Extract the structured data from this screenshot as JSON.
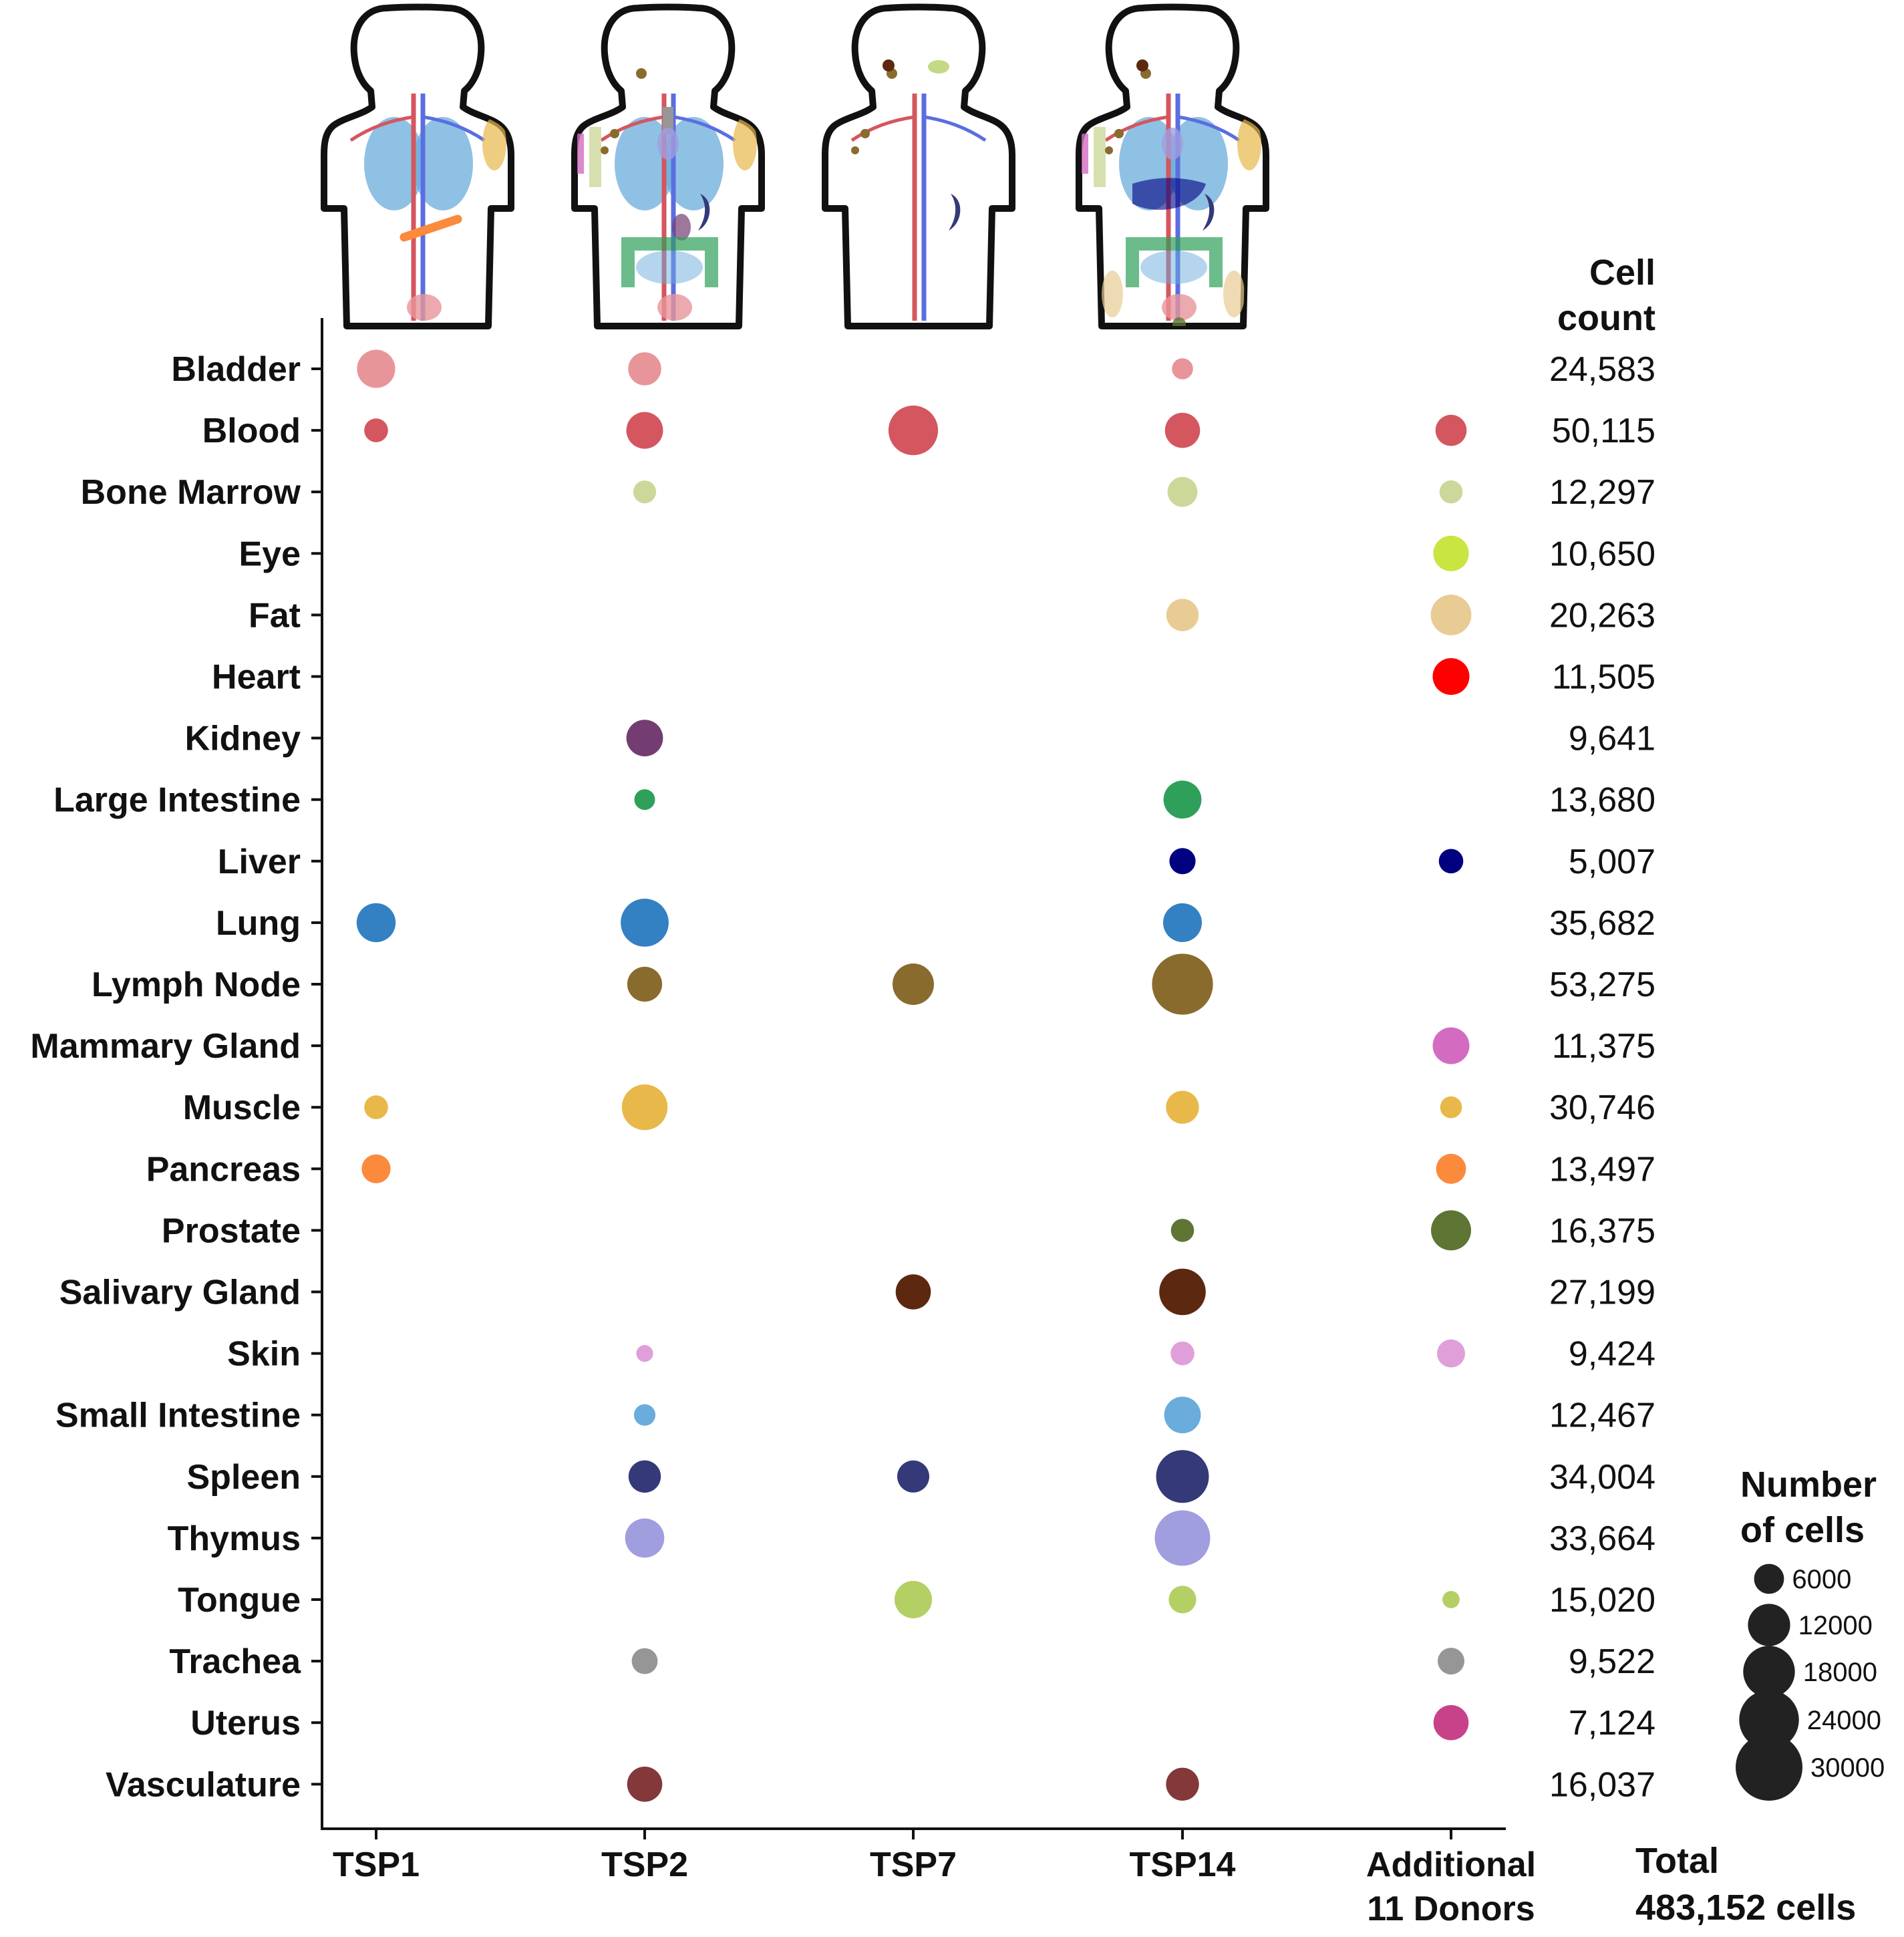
{
  "header": {
    "cell_count_line1": "Cell",
    "cell_count_line2": "count",
    "legend_title_line1": "Number",
    "legend_title_line2": "of cells",
    "total_line1": "Total",
    "total_line2": "483,152 cells"
  },
  "legend": {
    "sizes": [
      6000,
      12000,
      18000,
      24000,
      30000
    ],
    "labels": [
      "6000",
      "12000",
      "18000",
      "24000",
      "30000"
    ]
  },
  "chart_data": {
    "type": "scatter",
    "subtype": "dot-matrix",
    "x_categories": [
      "TSP1",
      "TSP2",
      "TSP7",
      "TSP14",
      "Additional\n11 Donors"
    ],
    "y_categories": [
      "Bladder",
      "Blood",
      "Bone Marrow",
      "Eye",
      "Fat",
      "Heart",
      "Kidney",
      "Large Intestine",
      "Liver",
      "Lung",
      "Lymph Node",
      "Mammary Gland",
      "Muscle",
      "Pancreas",
      "Prostate",
      "Salivary Gland",
      "Skin",
      "Small Intestine",
      "Spleen",
      "Thymus",
      "Tongue",
      "Trachea",
      "Uterus",
      "Vasculature"
    ],
    "cell_counts": [
      "24,583",
      "50,115",
      "12,297",
      "10,650",
      "20,263",
      "11,505",
      "9,641",
      "13,680",
      "5,007",
      "35,682",
      "53,275",
      "11,375",
      "30,746",
      "13,497",
      "16,375",
      "27,199",
      "9,424",
      "12,467",
      "34,004",
      "33,664",
      "15,020",
      "9,522",
      "7,124",
      "16,037"
    ],
    "colors": {
      "Bladder": "#e8959a",
      "Blood": "#d4565f",
      "Bone Marrow": "#ccd89a",
      "Eye": "#c9e542",
      "Fat": "#e8cc93",
      "Heart": "#ff0000",
      "Kidney": "#733d72",
      "Large Intestine": "#2ea05a",
      "Liver": "#000080",
      "Lung": "#3381c2",
      "Lymph Node": "#8a6b2e",
      "Mammary Gland": "#d36cc0",
      "Muscle": "#e8b84a",
      "Pancreas": "#fb8a3c",
      "Prostate": "#5e7534",
      "Salivary Gland": "#5c2810",
      "Skin": "#dfa0da",
      "Small Intestine": "#6aacdb",
      "Spleen": "#343a78",
      "Thymus": "#a09ede",
      "Tongue": "#b4cf64",
      "Trachea": "#969696",
      "Uterus": "#c8428a",
      "Vasculature": "#83383a"
    },
    "points": [
      {
        "donor": "TSP1",
        "tissue": "Bladder",
        "cells": 9800
      },
      {
        "donor": "TSP1",
        "tissue": "Blood",
        "cells": 3800
      },
      {
        "donor": "TSP1",
        "tissue": "Lung",
        "cells": 10200
      },
      {
        "donor": "TSP1",
        "tissue": "Muscle",
        "cells": 3800
      },
      {
        "donor": "TSP1",
        "tissue": "Pancreas",
        "cells": 5600
      },
      {
        "donor": "TSP2",
        "tissue": "Bladder",
        "cells": 7300
      },
      {
        "donor": "TSP2",
        "tissue": "Blood",
        "cells": 9100
      },
      {
        "donor": "TSP2",
        "tissue": "Bone Marrow",
        "cells": 3500
      },
      {
        "donor": "TSP2",
        "tissue": "Kidney",
        "cells": 9000
      },
      {
        "donor": "TSP2",
        "tissue": "Large Intestine",
        "cells": 2900
      },
      {
        "donor": "TSP2",
        "tissue": "Lung",
        "cells": 15500
      },
      {
        "donor": "TSP2",
        "tissue": "Lymph Node",
        "cells": 8200
      },
      {
        "donor": "TSP2",
        "tissue": "Muscle",
        "cells": 14000
      },
      {
        "donor": "TSP2",
        "tissue": "Skin",
        "cells": 1900
      },
      {
        "donor": "TSP2",
        "tissue": "Small Intestine",
        "cells": 3100
      },
      {
        "donor": "TSP2",
        "tissue": "Spleen",
        "cells": 7000
      },
      {
        "donor": "TSP2",
        "tissue": "Thymus",
        "cells": 10300
      },
      {
        "donor": "TSP2",
        "tissue": "Trachea",
        "cells": 4500
      },
      {
        "donor": "TSP2",
        "tissue": "Vasculature",
        "cells": 8300
      },
      {
        "donor": "TSP7",
        "tissue": "Blood",
        "cells": 16500
      },
      {
        "donor": "TSP7",
        "tissue": "Lymph Node",
        "cells": 11500
      },
      {
        "donor": "TSP7",
        "tissue": "Salivary Gland",
        "cells": 8300
      },
      {
        "donor": "TSP7",
        "tissue": "Spleen",
        "cells": 6900
      },
      {
        "donor": "TSP7",
        "tissue": "Tongue",
        "cells": 9400
      },
      {
        "donor": "TSP14",
        "tissue": "Bladder",
        "cells": 3000
      },
      {
        "donor": "TSP14",
        "tissue": "Blood",
        "cells": 8300
      },
      {
        "donor": "TSP14",
        "tissue": "Bone Marrow",
        "cells": 6000
      },
      {
        "donor": "TSP14",
        "tissue": "Fat",
        "cells": 7000
      },
      {
        "donor": "TSP14",
        "tissue": "Large Intestine",
        "cells": 9700
      },
      {
        "donor": "TSP14",
        "tissue": "Liver",
        "cells": 4600
      },
      {
        "donor": "TSP14",
        "tissue": "Lung",
        "cells": 10100
      },
      {
        "donor": "TSP14",
        "tissue": "Lymph Node",
        "cells": 25000
      },
      {
        "donor": "TSP14",
        "tissue": "Muscle",
        "cells": 7300
      },
      {
        "donor": "TSP14",
        "tissue": "Prostate",
        "cells": 3600
      },
      {
        "donor": "TSP14",
        "tissue": "Salivary Gland",
        "cells": 14500
      },
      {
        "donor": "TSP14",
        "tissue": "Skin",
        "cells": 3800
      },
      {
        "donor": "TSP14",
        "tissue": "Small Intestine",
        "cells": 9000
      },
      {
        "donor": "TSP14",
        "tissue": "Spleen",
        "cells": 18700
      },
      {
        "donor": "TSP14",
        "tissue": "Thymus",
        "cells": 20700
      },
      {
        "donor": "TSP14",
        "tissue": "Tongue",
        "cells": 5100
      },
      {
        "donor": "TSP14",
        "tissue": "Vasculature",
        "cells": 7300
      },
      {
        "donor": "Additional\n11 Donors",
        "tissue": "Blood",
        "cells": 6500
      },
      {
        "donor": "Additional\n11 Donors",
        "tissue": "Bone Marrow",
        "cells": 3600
      },
      {
        "donor": "Additional\n11 Donors",
        "tissue": "Eye",
        "cells": 8500
      },
      {
        "donor": "Additional\n11 Donors",
        "tissue": "Fat",
        "cells": 11100
      },
      {
        "donor": "Additional\n11 Donors",
        "tissue": "Heart",
        "cells": 9100
      },
      {
        "donor": "Additional\n11 Donors",
        "tissue": "Liver",
        "cells": 4000
      },
      {
        "donor": "Additional\n11 Donors",
        "tissue": "Mammary Gland",
        "cells": 9100
      },
      {
        "donor": "Additional\n11 Donors",
        "tissue": "Muscle",
        "cells": 3200
      },
      {
        "donor": "Additional\n11 Donors",
        "tissue": "Pancreas",
        "cells": 6000
      },
      {
        "donor": "Additional\n11 Donors",
        "tissue": "Prostate",
        "cells": 10800
      },
      {
        "donor": "Additional\n11 Donors",
        "tissue": "Skin",
        "cells": 5300
      },
      {
        "donor": "Additional\n11 Donors",
        "tissue": "Tongue",
        "cells": 2000
      },
      {
        "donor": "Additional\n11 Donors",
        "tissue": "Trachea",
        "cells": 4800
      },
      {
        "donor": "Additional\n11 Donors",
        "tissue": "Uterus",
        "cells": 8300
      }
    ],
    "legend_placement": "right",
    "grid": false
  },
  "illustrations": {
    "icon": "human-torso-organ-icon",
    "donors": [
      {
        "donor": "TSP1",
        "organs": [
          "Lung",
          "Blood",
          "Vasculature",
          "Muscle",
          "Pancreas",
          "Bladder"
        ]
      },
      {
        "donor": "TSP2",
        "organs": [
          "Lung",
          "Blood",
          "Vasculature",
          "Muscle",
          "Bone Marrow",
          "Skin",
          "Lymph Node",
          "Trachea",
          "Thymus",
          "Kidney",
          "Spleen",
          "Large Intestine",
          "Small Intestine",
          "Bladder"
        ]
      },
      {
        "donor": "TSP7",
        "organs": [
          "Blood",
          "Vasculature",
          "Lymph Node",
          "Salivary Gland",
          "Spleen",
          "Tongue"
        ]
      },
      {
        "donor": "TSP14",
        "organs": [
          "Lung",
          "Blood",
          "Vasculature",
          "Muscle",
          "Bone Marrow",
          "Skin",
          "Lymph Node",
          "Salivary Gland",
          "Thymus",
          "Liver",
          "Spleen",
          "Large Intestine",
          "Small Intestine",
          "Fat",
          "Bladder",
          "Prostate"
        ]
      }
    ]
  }
}
